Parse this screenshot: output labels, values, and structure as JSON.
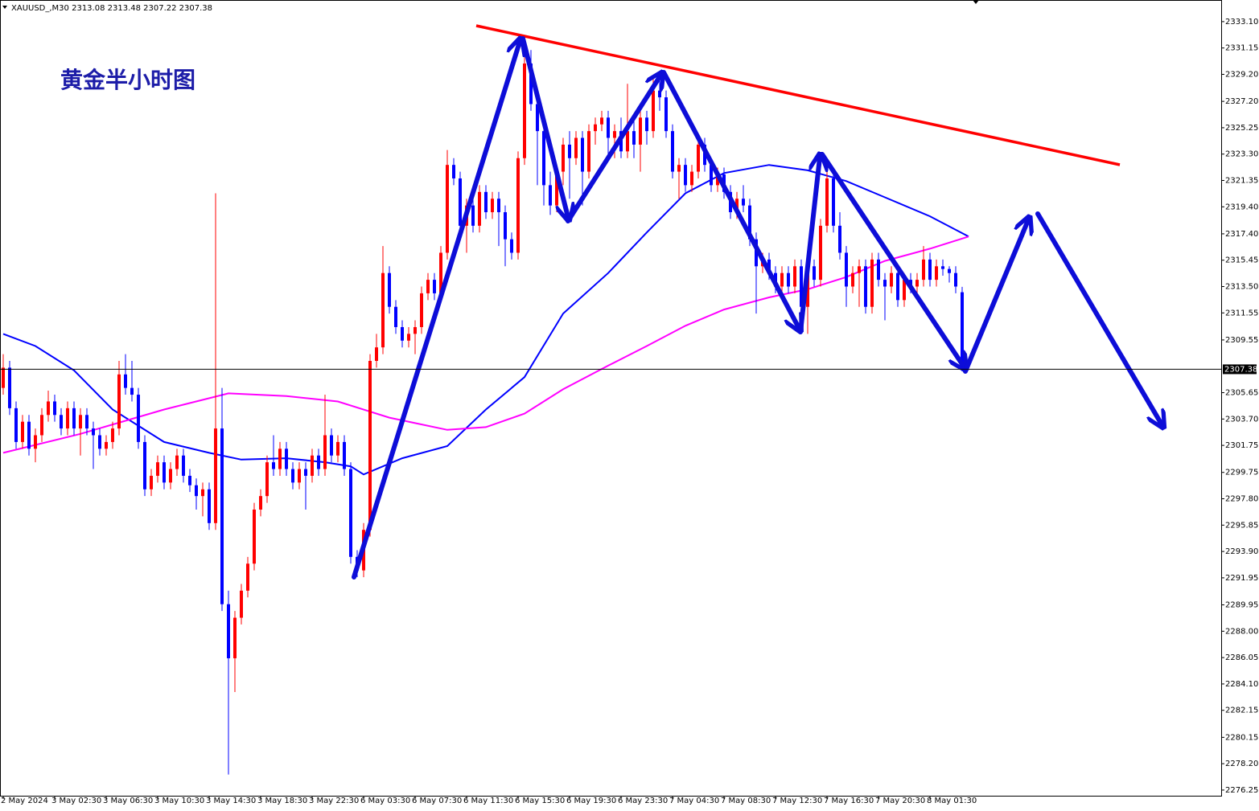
{
  "chart_data": {
    "type": "candlestick",
    "header": "XAUUSD_,M30  2313.08 2313.48 2307.22 2307.38",
    "title": "黄金半小时图",
    "up_color": "#ff0000",
    "down_color": "#0000ff",
    "xlim": [
      -0.5,
      189.25
    ],
    "ylim": [
      2275.83,
      2334.7
    ],
    "current_price": 2307.38,
    "xticks": [
      {
        "value": 0,
        "label": "2 May 2024"
      },
      {
        "value": 8,
        "label": "3 May 02:30"
      },
      {
        "value": 16,
        "label": "3 May 06:30"
      },
      {
        "value": 24,
        "label": "3 May 10:30"
      },
      {
        "value": 32,
        "label": "3 May 14:30"
      },
      {
        "value": 40,
        "label": "3 May 18:30"
      },
      {
        "value": 48,
        "label": "3 May 22:30"
      },
      {
        "value": 56,
        "label": "6 May 03:30"
      },
      {
        "value": 64,
        "label": "6 May 07:30"
      },
      {
        "value": 72,
        "label": "6 May 11:30"
      },
      {
        "value": 80,
        "label": "6 May 15:30"
      },
      {
        "value": 88,
        "label": "6 May 19:30"
      },
      {
        "value": 96,
        "label": "6 May 23:30"
      },
      {
        "value": 104,
        "label": "7 May 04:30"
      },
      {
        "value": 112,
        "label": "7 May 08:30"
      },
      {
        "value": 120,
        "label": "7 May 12:30"
      },
      {
        "value": 128,
        "label": "7 May 16:30"
      },
      {
        "value": 136,
        "label": "7 May 20:30"
      },
      {
        "value": 144,
        "label": "8 May 01:30"
      }
    ],
    "yticks": [
      {
        "value": 2333.1,
        "label": "2333.10"
      },
      {
        "value": 2331.15,
        "label": "2331.15"
      },
      {
        "value": 2329.2,
        "label": "2329.20"
      },
      {
        "value": 2327.2,
        "label": "2327.20"
      },
      {
        "value": 2325.25,
        "label": "2325.25"
      },
      {
        "value": 2323.3,
        "label": "2323.30"
      },
      {
        "value": 2321.35,
        "label": "2321.35"
      },
      {
        "value": 2319.4,
        "label": "2319.40"
      },
      {
        "value": 2317.4,
        "label": "2317.40"
      },
      {
        "value": 2315.45,
        "label": "2315.45"
      },
      {
        "value": 2313.5,
        "label": "2313.50"
      },
      {
        "value": 2311.55,
        "label": "2311.55"
      },
      {
        "value": 2309.55,
        "label": "2309.55"
      },
      {
        "value": 2305.65,
        "label": "2305.65"
      },
      {
        "value": 2303.7,
        "label": "2303.70"
      },
      {
        "value": 2301.75,
        "label": "2301.75"
      },
      {
        "value": 2299.75,
        "label": "2299.75"
      },
      {
        "value": 2297.8,
        "label": "2297.80"
      },
      {
        "value": 2295.85,
        "label": "2295.85"
      },
      {
        "value": 2293.9,
        "label": "2293.90"
      },
      {
        "value": 2291.95,
        "label": "2291.95"
      },
      {
        "value": 2289.95,
        "label": "2289.95"
      },
      {
        "value": 2288.0,
        "label": "2288.00"
      },
      {
        "value": 2286.05,
        "label": "2286.05"
      },
      {
        "value": 2284.1,
        "label": "2284.10"
      },
      {
        "value": 2282.15,
        "label": "2282.15"
      },
      {
        "value": 2280.15,
        "label": "2280.15"
      },
      {
        "value": 2278.2,
        "label": "2278.20"
      },
      {
        "value": 2276.25,
        "label": "2276.25"
      }
    ],
    "ohlc": [
      [
        2306,
        2308.5,
        2305.5,
        2307.5
      ],
      [
        2307.5,
        2308,
        2304,
        2304.5
      ],
      [
        2304.5,
        2305,
        2301.5,
        2302
      ],
      [
        2302,
        2304,
        2301.5,
        2303.5
      ],
      [
        2303.5,
        2304,
        2301,
        2301.5
      ],
      [
        2301.5,
        2303,
        2300.5,
        2302.5
      ],
      [
        2302.5,
        2304.5,
        2302,
        2304
      ],
      [
        2304,
        2305.8,
        2303.5,
        2305
      ],
      [
        2305,
        2305.5,
        2303.5,
        2304
      ],
      [
        2304,
        2304.5,
        2302.5,
        2303
      ],
      [
        2303,
        2305,
        2302.5,
        2304.5
      ],
      [
        2304.5,
        2305,
        2302.5,
        2303
      ],
      [
        2303,
        2304.5,
        2301,
        2304
      ],
      [
        2304,
        2304.5,
        2302.5,
        2303
      ],
      [
        2303,
        2303.5,
        2300,
        2302.5
      ],
      [
        2302.5,
        2303,
        2301,
        2301.5
      ],
      [
        2301.5,
        2302.5,
        2301,
        2302
      ],
      [
        2302,
        2303.5,
        2301.5,
        2303
      ],
      [
        2303,
        2308,
        2302.5,
        2307
      ],
      [
        2307,
        2308.5,
        2305.5,
        2306
      ],
      [
        2306,
        2308,
        2305,
        2305.5
      ],
      [
        2305.5,
        2306,
        2301.5,
        2302
      ],
      [
        2302,
        2302.5,
        2298,
        2298.5
      ],
      [
        2298.5,
        2300,
        2298,
        2299.5
      ],
      [
        2299.5,
        2301,
        2299,
        2300.5
      ],
      [
        2300.5,
        2301,
        2298.5,
        2299
      ],
      [
        2299,
        2300.5,
        2298.5,
        2300
      ],
      [
        2300,
        2301.5,
        2299.5,
        2301
      ],
      [
        2301,
        2301.5,
        2299,
        2299.5
      ],
      [
        2299.5,
        2300,
        2298.3,
        2298.8
      ],
      [
        2298.8,
        2299.3,
        2297,
        2298
      ],
      [
        2298,
        2299,
        2296.5,
        2298.5
      ],
      [
        2298.5,
        2299,
        2295.5,
        2296
      ],
      [
        2296,
        2320.4,
        2295.5,
        2303
      ],
      [
        2303,
        2306,
        2289.5,
        2290
      ],
      [
        2290,
        2291,
        2277.4,
        2286
      ],
      [
        2286,
        2289.5,
        2283.5,
        2289
      ],
      [
        2289,
        2291.5,
        2288.5,
        2291
      ],
      [
        2291,
        2293.5,
        2290.5,
        2293
      ],
      [
        2293,
        2297.5,
        2292.5,
        2297
      ],
      [
        2297,
        2298.5,
        2296.5,
        2298
      ],
      [
        2298,
        2301,
        2297.5,
        2300.5
      ],
      [
        2300.5,
        2302.5,
        2299.5,
        2300
      ],
      [
        2300,
        2302,
        2299.5,
        2301.5
      ],
      [
        2301.5,
        2302,
        2299.5,
        2300
      ],
      [
        2300,
        2300.5,
        2298.5,
        2299
      ],
      [
        2299,
        2300.5,
        2298.5,
        2300
      ],
      [
        2300,
        2300.5,
        2297,
        2299.5
      ],
      [
        2299.5,
        2301.5,
        2299,
        2301
      ],
      [
        2301,
        2301.5,
        2299.5,
        2300
      ],
      [
        2300,
        2305.5,
        2299.5,
        2302.5
      ],
      [
        2302.5,
        2303,
        2300.5,
        2301
      ],
      [
        2301,
        2302.5,
        2300.5,
        2302
      ],
      [
        2302,
        2302.5,
        2299.5,
        2300
      ],
      [
        2300,
        2300.5,
        2293,
        2293.5
      ],
      [
        2293.5,
        2294,
        2292,
        2292.5
      ],
      [
        2292.5,
        2296,
        2292,
        2295.5
      ],
      [
        2295.5,
        2308.5,
        2295,
        2308
      ],
      [
        2308,
        2310,
        2307.5,
        2309
      ],
      [
        2309,
        2316.5,
        2308.5,
        2314.5
      ],
      [
        2314.5,
        2315,
        2311.5,
        2312
      ],
      [
        2312,
        2312.5,
        2310,
        2310.5
      ],
      [
        2310.5,
        2311,
        2309,
        2309.5
      ],
      [
        2309.5,
        2310.5,
        2309,
        2310
      ],
      [
        2310,
        2311,
        2308.5,
        2310.5
      ],
      [
        2310.5,
        2313.5,
        2310,
        2313
      ],
      [
        2313,
        2314.5,
        2312.5,
        2314
      ],
      [
        2314,
        2314.5,
        2312.5,
        2313
      ],
      [
        2313,
        2316.5,
        2312.5,
        2316
      ],
      [
        2316,
        2323.6,
        2315.5,
        2322.5
      ],
      [
        2322.5,
        2323,
        2321,
        2321.5
      ],
      [
        2321.5,
        2322,
        2317.5,
        2318
      ],
      [
        2318,
        2320,
        2316,
        2319.5
      ],
      [
        2319.5,
        2320,
        2317.5,
        2318
      ],
      [
        2318,
        2321,
        2317.5,
        2320.5
      ],
      [
        2320.5,
        2321,
        2318.5,
        2319
      ],
      [
        2319,
        2320.5,
        2318.5,
        2320
      ],
      [
        2320,
        2320.5,
        2316.5,
        2319
      ],
      [
        2319,
        2319.5,
        2315,
        2317
      ],
      [
        2317,
        2317.5,
        2315.5,
        2316
      ],
      [
        2316,
        2323.5,
        2315.5,
        2323
      ],
      [
        2323,
        2332,
        2322.5,
        2330
      ],
      [
        2330,
        2331,
        2326.5,
        2327
      ],
      [
        2327,
        2327.5,
        2321,
        2325
      ],
      [
        2325,
        2325.5,
        2319.5,
        2321
      ],
      [
        2321,
        2322,
        2318.8,
        2319.5
      ],
      [
        2319.5,
        2322.5,
        2319,
        2322
      ],
      [
        2322,
        2324.5,
        2321,
        2324
      ],
      [
        2324,
        2325,
        2320,
        2323
      ],
      [
        2323,
        2325,
        2322.5,
        2324.5
      ],
      [
        2324.5,
        2325,
        2319.5,
        2322
      ],
      [
        2322,
        2325.5,
        2321.5,
        2325
      ],
      [
        2325,
        2326,
        2324,
        2325.5
      ],
      [
        2325.5,
        2326.5,
        2325,
        2326
      ],
      [
        2326,
        2326.5,
        2323,
        2324.5
      ],
      [
        2324.5,
        2325.5,
        2323,
        2325
      ],
      [
        2325,
        2326,
        2323,
        2323.5
      ],
      [
        2323.5,
        2328.5,
        2323,
        2325
      ],
      [
        2325,
        2326,
        2323,
        2324
      ],
      [
        2324,
        2326.5,
        2322,
        2326
      ],
      [
        2326,
        2326.5,
        2324,
        2325
      ],
      [
        2325,
        2329,
        2324.5,
        2328
      ],
      [
        2328,
        2329,
        2326.5,
        2327.5
      ],
      [
        2327.5,
        2328,
        2324.5,
        2325
      ],
      [
        2325,
        2325.5,
        2321.5,
        2322
      ],
      [
        2322,
        2323,
        2320,
        2322.5
      ],
      [
        2322.5,
        2323,
        2320.5,
        2321
      ],
      [
        2321,
        2322.5,
        2320.5,
        2322
      ],
      [
        2322,
        2324.5,
        2321.5,
        2324
      ],
      [
        2324,
        2324.5,
        2322,
        2322.5
      ],
      [
        2322.5,
        2323,
        2320.5,
        2321
      ],
      [
        2321,
        2322.3,
        2320.5,
        2321.8
      ],
      [
        2321.8,
        2322.3,
        2320,
        2320.5
      ],
      [
        2320.5,
        2321,
        2318.5,
        2319
      ],
      [
        2319,
        2320.5,
        2318.5,
        2320
      ],
      [
        2320,
        2321,
        2319,
        2319.5
      ],
      [
        2319.5,
        2320,
        2316.5,
        2317
      ],
      [
        2317,
        2317.5,
        2311.5,
        2315
      ],
      [
        2315,
        2316,
        2314.5,
        2315.5
      ],
      [
        2315.5,
        2316,
        2314,
        2314.5
      ],
      [
        2314.5,
        2315,
        2313,
        2313.5
      ],
      [
        2313.5,
        2315,
        2313,
        2314.5
      ],
      [
        2314.5,
        2315,
        2313,
        2313.5
      ],
      [
        2313.5,
        2315.5,
        2313,
        2315
      ],
      [
        2315,
        2315.5,
        2311.5,
        2312
      ],
      [
        2312,
        2315.5,
        2310,
        2315
      ],
      [
        2315,
        2315.5,
        2313.5,
        2314
      ],
      [
        2314,
        2318.5,
        2313.5,
        2318
      ],
      [
        2318,
        2323,
        2317.5,
        2321.5
      ],
      [
        2321.5,
        2322,
        2317.5,
        2318
      ],
      [
        2318,
        2319,
        2315.5,
        2316
      ],
      [
        2316,
        2316.5,
        2312,
        2313.5
      ],
      [
        2313.5,
        2315,
        2313,
        2314.5
      ],
      [
        2314.5,
        2315.5,
        2312,
        2315
      ],
      [
        2315,
        2315.5,
        2311.5,
        2312
      ],
      [
        2312,
        2316,
        2311.5,
        2315.5
      ],
      [
        2315.5,
        2316,
        2313.5,
        2314
      ],
      [
        2314,
        2314.5,
        2311,
        2313.5
      ],
      [
        2313.5,
        2315,
        2313,
        2314.5
      ],
      [
        2314.5,
        2315,
        2312,
        2312.5
      ],
      [
        2312.5,
        2314.5,
        2312,
        2314
      ],
      [
        2314,
        2314.5,
        2313,
        2313.5
      ],
      [
        2313.5,
        2314.5,
        2313,
        2314
      ],
      [
        2314,
        2316.5,
        2313.5,
        2315.5
      ],
      [
        2315.5,
        2316,
        2313.5,
        2314
      ],
      [
        2314,
        2315.5,
        2313.5,
        2315
      ],
      [
        2315,
        2315.5,
        2314.3,
        2314.8
      ],
      [
        2314.8,
        2315,
        2313.8,
        2314.5
      ],
      [
        2314.5,
        2315,
        2313,
        2313.5
      ],
      [
        2313.08,
        2313.48,
        2307.22,
        2307.38
      ]
    ],
    "series": [
      {
        "color": "#0000ff",
        "x": [
          0,
          5,
          11,
          17,
          25,
          32,
          37,
          44,
          50,
          54,
          56,
          62,
          69,
          75,
          81,
          87,
          94,
          100,
          106,
          112,
          119,
          125,
          131,
          137,
          144,
          150
        ],
        "values": [
          2310.0,
          2309.1,
          2307.3,
          2304.4,
          2302.0,
          2301.2,
          2300.7,
          2300.8,
          2300.5,
          2300.2,
          2299.6,
          2300.8,
          2301.7,
          2304.4,
          2306.8,
          2311.5,
          2314.5,
          2317.5,
          2320.4,
          2321.9,
          2322.5,
          2322.1,
          2321.3,
          2320.1,
          2318.7,
          2317.2
        ]
      },
      {
        "color": "#ff00ff",
        "x": [
          0,
          12,
          25,
          35,
          44,
          52,
          60,
          69,
          75,
          81,
          87,
          94,
          100,
          106,
          112,
          119,
          125,
          131,
          137,
          144,
          150
        ],
        "values": [
          2301.2,
          2302.6,
          2304.4,
          2305.6,
          2305.4,
          2305.0,
          2303.8,
          2302.9,
          2303.1,
          2304.1,
          2305.9,
          2307.65,
          2309.1,
          2310.6,
          2311.8,
          2312.7,
          2313.3,
          2314.2,
          2315.4,
          2316.3,
          2317.2
        ]
      }
    ]
  }
}
